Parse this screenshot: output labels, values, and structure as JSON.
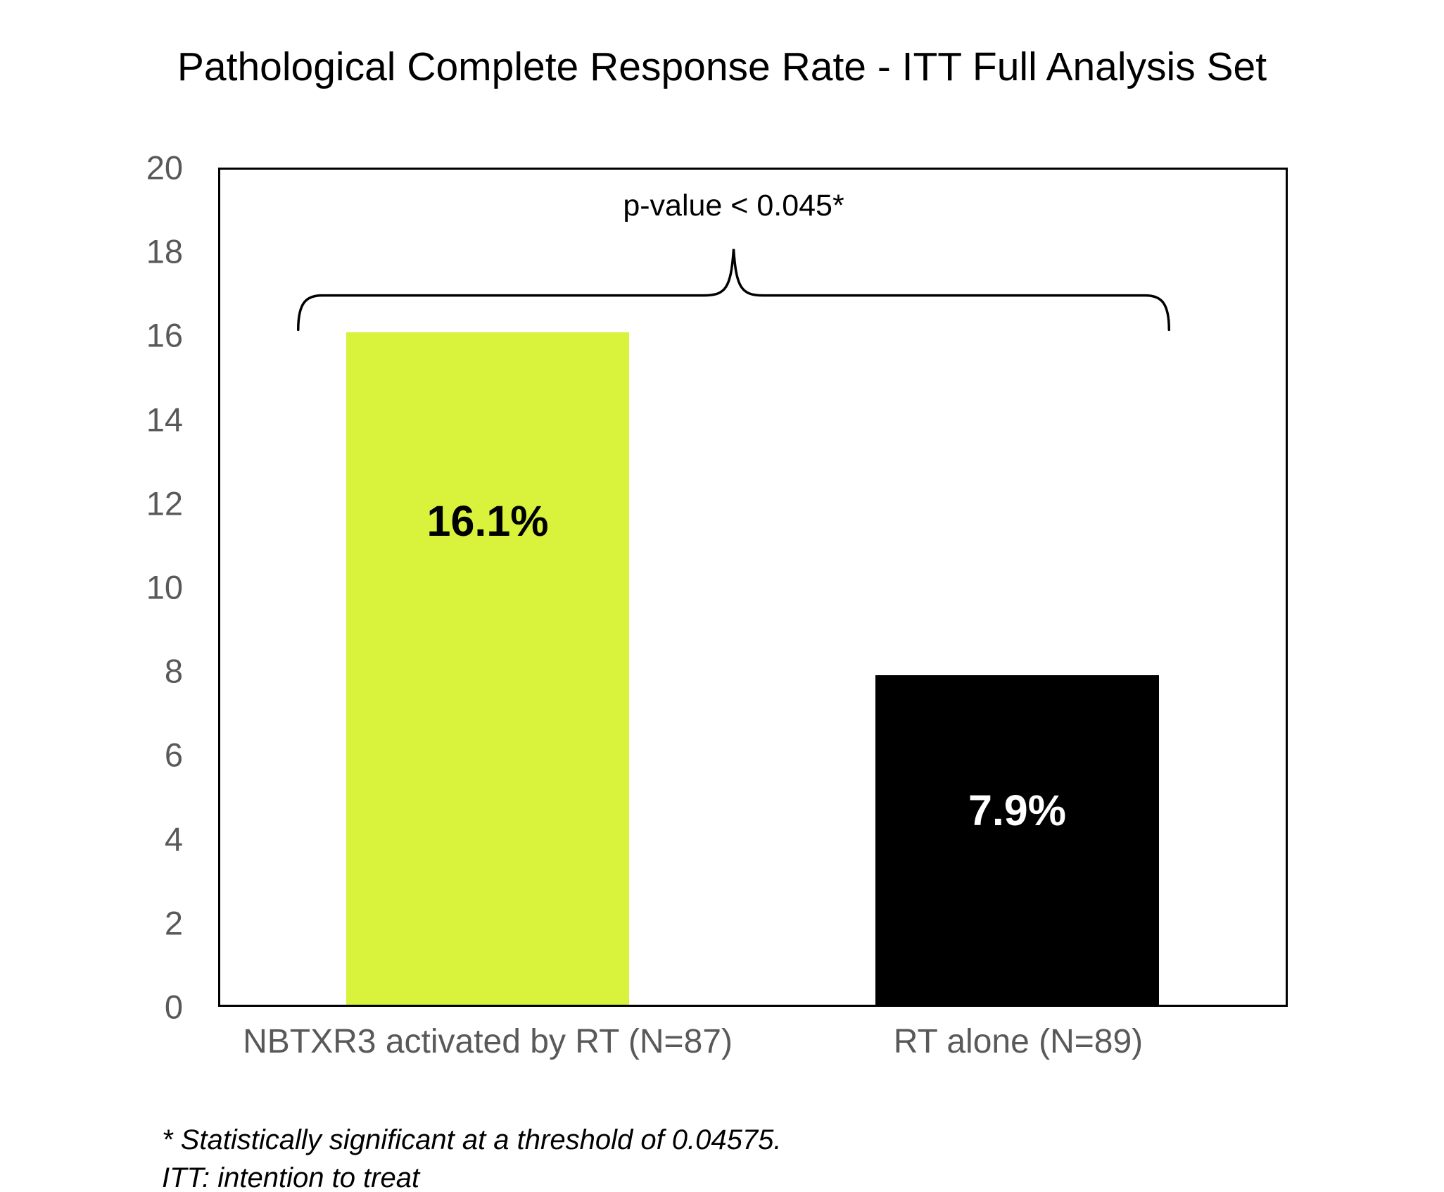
{
  "title": "Pathological Complete Response Rate - ITT Full Analysis Set",
  "chart_data": {
    "type": "bar",
    "title": "Pathological Complete Response Rate - ITT Full Analysis Set",
    "categories": [
      "NBTXR3 activated by RT (N=87)",
      "RT alone (N=89)"
    ],
    "values": [
      16.1,
      7.9
    ],
    "bar_labels": [
      "16.1%",
      "7.9%"
    ],
    "bar_colors": [
      "#d9f23c",
      "#000000"
    ],
    "bar_label_colors": [
      "#000000",
      "#ffffff"
    ],
    "annotation": "p-value < 0.045*",
    "xlabel": "",
    "ylabel": "",
    "ylim": [
      0,
      20
    ],
    "yticks": [
      0,
      2,
      4,
      6,
      8,
      10,
      12,
      14,
      16,
      18,
      20
    ],
    "grid": false,
    "legend": false
  },
  "footnotes": [
    "* Statistically significant at a threshold of 0.04575.",
    "ITT: intention to treat"
  ]
}
